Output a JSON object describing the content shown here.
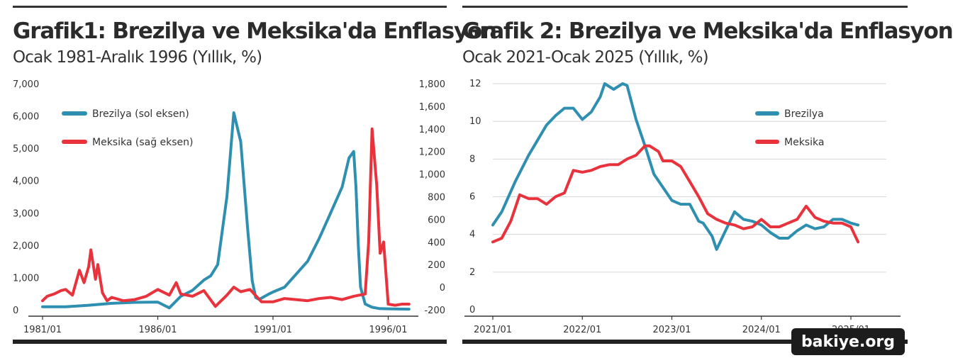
{
  "chart_data": [
    {
      "type": "line",
      "title": "Grafik1: Brezilya ve Meksika'da Enflasyon",
      "subtitle": "Ocak 1981-Aralık 1996 (Yıllık, %)",
      "x_ticks": [
        "1981/01",
        "1986/01",
        "1991/01",
        "1996/01"
      ],
      "x_range": [
        1981.0,
        1997.0
      ],
      "left_axis": {
        "ticks": [
          "0",
          "1,000",
          "2,000",
          "3,000",
          "4,000",
          "5,000",
          "6,000",
          "7,000"
        ],
        "ylim": [
          0,
          7000
        ]
      },
      "right_axis": {
        "ticks": [
          "-200",
          "0",
          "200",
          "400",
          "600",
          "800",
          "1,000",
          "1,200",
          "1,400",
          "1,600",
          "1,800"
        ],
        "ylim": [
          -200,
          1800
        ]
      },
      "legend": {
        "position": "top-left"
      },
      "series": [
        {
          "name": "Brezilya (sol eksen)",
          "axis": "left",
          "color": "#2e8fb0",
          "x": [
            1981.0,
            1982.0,
            1983.0,
            1984.0,
            1985.0,
            1986.0,
            1986.5,
            1987.0,
            1987.5,
            1988.0,
            1988.3,
            1988.6,
            1989.0,
            1989.3,
            1989.6,
            1989.9,
            1990.1,
            1990.25,
            1990.4,
            1990.6,
            1990.8,
            1991.0,
            1991.5,
            1992.0,
            1992.5,
            1993.0,
            1993.5,
            1994.0,
            1994.3,
            1994.5,
            1994.6,
            1994.7,
            1994.8,
            1995.0,
            1995.3,
            1995.6,
            1996.0,
            1996.9
          ],
          "y": [
            95,
            95,
            140,
            200,
            230,
            240,
            60,
            420,
            600,
            920,
            1050,
            1400,
            3500,
            6100,
            5200,
            2500,
            900,
            380,
            320,
            400,
            480,
            550,
            700,
            1100,
            1500,
            2200,
            3000,
            3800,
            4700,
            4900,
            3800,
            2000,
            700,
            180,
            80,
            40,
            30,
            20
          ]
        },
        {
          "name": "Meksika (sağ eksen)",
          "axis": "right",
          "color": "#e8323c",
          "x": [
            1981.0,
            1981.2,
            1981.5,
            1981.8,
            1982.0,
            1982.3,
            1982.6,
            1982.8,
            1983.0,
            1983.1,
            1983.3,
            1983.4,
            1983.6,
            1983.8,
            1984.0,
            1984.5,
            1985.0,
            1985.5,
            1986.0,
            1986.5,
            1986.8,
            1987.0,
            1987.5,
            1988.0,
            1988.5,
            1989.0,
            1989.3,
            1989.6,
            1990.0,
            1990.5,
            1991.0,
            1991.5,
            1992.0,
            1992.5,
            1993.0,
            1993.5,
            1994.0,
            1994.5,
            1995.0,
            1995.15,
            1995.3,
            1995.5,
            1995.65,
            1995.8,
            1996.0,
            1996.3,
            1996.6,
            1996.9
          ],
          "y": [
            -120,
            -80,
            -60,
            -30,
            -20,
            -70,
            150,
            40,
            180,
            330,
            70,
            200,
            -50,
            -120,
            -90,
            -120,
            -110,
            -80,
            -20,
            -70,
            40,
            -60,
            -80,
            -30,
            -170,
            -70,
            0,
            -40,
            -20,
            -130,
            -130,
            -100,
            -110,
            -120,
            -100,
            -90,
            -110,
            -80,
            -60,
            400,
            1400,
            900,
            300,
            400,
            -150,
            -160,
            -150,
            -150
          ]
        }
      ]
    },
    {
      "type": "line",
      "title": "Grafik 2: Brezilya ve Meksika'da Enflasyon",
      "subtitle": "Ocak 2021-Ocak 2025 (Yıllık, %)",
      "x_ticks": [
        "2021/01",
        "2022/01",
        "2023/01",
        "2024/01",
        "2025/01"
      ],
      "y_ticks": [
        "0",
        "2",
        "4",
        "6",
        "8",
        "10",
        "12"
      ],
      "ylim": [
        0,
        12
      ],
      "legend": {
        "position": "top-right"
      },
      "series": [
        {
          "name": "Brezilya",
          "color": "#2e8fb0",
          "x": [
            2021.0,
            2021.1,
            2021.25,
            2021.4,
            2021.5,
            2021.6,
            2021.7,
            2021.8,
            2021.9,
            2022.0,
            2022.1,
            2022.2,
            2022.25,
            2022.35,
            2022.45,
            2022.5,
            2022.6,
            2022.7,
            2022.8,
            2022.9,
            2023.0,
            2023.1,
            2023.2,
            2023.3,
            2023.35,
            2023.45,
            2023.5,
            2023.6,
            2023.7,
            2023.8,
            2023.9,
            2024.0,
            2024.1,
            2024.2,
            2024.3,
            2024.4,
            2024.5,
            2024.6,
            2024.7,
            2024.8,
            2024.9,
            2025.0,
            2025.08
          ],
          "y": [
            4.5,
            5.2,
            6.8,
            8.2,
            9.0,
            9.8,
            10.3,
            10.7,
            10.7,
            10.1,
            10.5,
            11.3,
            12.0,
            11.7,
            12.0,
            11.9,
            10.1,
            8.7,
            7.2,
            6.5,
            5.8,
            5.6,
            5.6,
            4.7,
            4.6,
            3.9,
            3.2,
            4.2,
            5.2,
            4.8,
            4.7,
            4.5,
            4.1,
            3.8,
            3.8,
            4.2,
            4.5,
            4.3,
            4.4,
            4.8,
            4.8,
            4.6,
            4.5
          ],
          "y_labels_unused": []
        },
        {
          "name": "Meksika",
          "color": "#e8323c",
          "x": [
            2021.0,
            2021.1,
            2021.2,
            2021.3,
            2021.4,
            2021.5,
            2021.6,
            2021.7,
            2021.8,
            2021.9,
            2022.0,
            2022.1,
            2022.2,
            2022.3,
            2022.4,
            2022.5,
            2022.6,
            2022.7,
            2022.75,
            2022.85,
            2022.9,
            2023.0,
            2023.1,
            2023.2,
            2023.3,
            2023.4,
            2023.5,
            2023.6,
            2023.7,
            2023.8,
            2023.9,
            2024.0,
            2024.1,
            2024.2,
            2024.3,
            2024.4,
            2024.5,
            2024.6,
            2024.7,
            2024.8,
            2024.9,
            2025.0,
            2025.08
          ],
          "y": [
            3.6,
            3.8,
            4.7,
            6.1,
            5.9,
            5.9,
            5.6,
            6.0,
            6.2,
            7.4,
            7.3,
            7.4,
            7.6,
            7.7,
            7.7,
            8.0,
            8.2,
            8.7,
            8.7,
            8.4,
            7.9,
            7.9,
            7.6,
            6.8,
            6.0,
            5.1,
            4.8,
            4.6,
            4.5,
            4.3,
            4.4,
            4.8,
            4.4,
            4.4,
            4.6,
            4.8,
            5.5,
            4.9,
            4.7,
            4.6,
            4.6,
            4.4,
            3.6
          ]
        }
      ]
    }
  ],
  "watermark": "bakiye.org"
}
